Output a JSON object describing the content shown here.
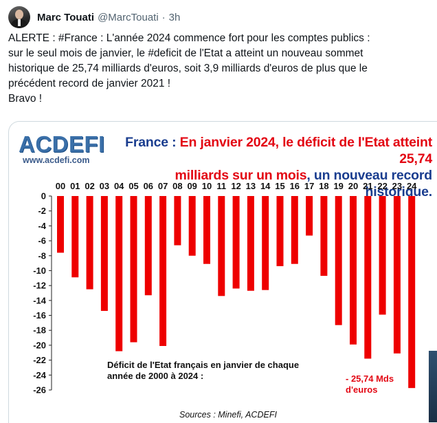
{
  "tweet": {
    "author_name": "Marc Touati",
    "author_handle": "@MarcTouati",
    "separator": "·",
    "time": "3h",
    "lines": [
      "ALERTE : #France : L'année 2024 commence fort pour les comptes publics :",
      "sur le seul mois de janvier, le #deficit de l'Etat a atteint un nouveau sommet",
      "historique de 25,74 milliards d'euros, soit 3,9 milliards d'euros de plus que le",
      "précédent record de janvier 2021 !",
      "Bravo !"
    ]
  },
  "image": {
    "logo_text": "ACDEFI",
    "logo_url": "www.acdefi.com",
    "headline": {
      "line1_part1": "France : ",
      "line1_part2": "En janvier 2024",
      "line1_part3": ", le déficit de l'Etat atteint 25,74",
      "line2_part1": "milliards sur un mois",
      "line2_part2": ", un nouveau record historique."
    },
    "source": "Sources : Minefi, ACDEFI",
    "colors": {
      "bar": "#ee0000",
      "headline_red": "#e30613",
      "headline_blue": "#1a3d8f",
      "logo": "#3a6fa8"
    }
  },
  "chart_data": {
    "type": "bar",
    "categories": [
      "00",
      "01",
      "02",
      "03",
      "04",
      "05",
      "06",
      "07",
      "08",
      "09",
      "10",
      "11",
      "12",
      "13",
      "14",
      "15",
      "16",
      "17",
      "18",
      "19",
      "20",
      "21",
      "22",
      "23",
      "24"
    ],
    "values": [
      -7.6,
      -10.9,
      -12.5,
      -15.4,
      -20.8,
      -19.6,
      -13.3,
      -20.1,
      -6.6,
      -8.0,
      -9.1,
      -13.4,
      -12.4,
      -12.7,
      -12.6,
      -9.4,
      -9.1,
      -5.3,
      -10.7,
      -17.3,
      -19.9,
      -21.8,
      -15.9,
      -21.1,
      -25.74
    ],
    "title": "France : En janvier 2024, le déficit de l'Etat atteint 25,74 milliards sur un mois, un nouveau record historique.",
    "subtitle": "Déficit de l'Etat français en janvier de chaque année de 2000 à 2024 :",
    "annotation": "- 25,74 Mds d'euros",
    "yticks": [
      "0",
      "-2",
      "-4",
      "-6",
      "-8",
      "-10",
      "-12",
      "-14",
      "-16",
      "-18",
      "-20",
      "-22",
      "-24",
      "-26"
    ],
    "ylim": [
      -26,
      0
    ],
    "grid": false,
    "legend": "none"
  }
}
